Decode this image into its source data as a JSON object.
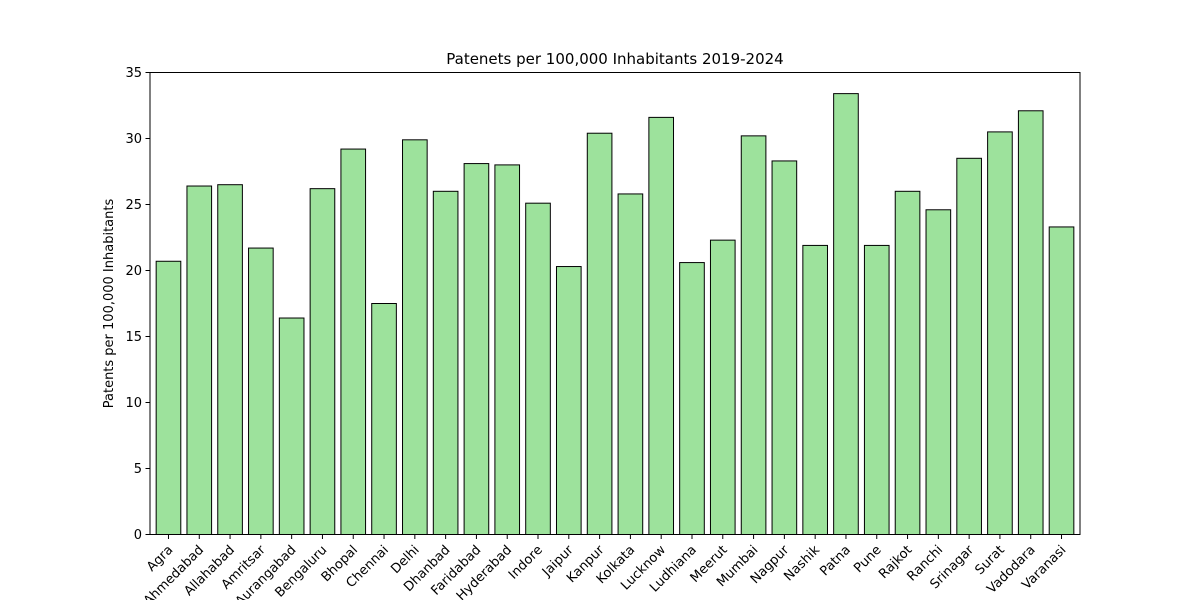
{
  "chart_data": {
    "type": "bar",
    "title": "Patenets per 100,000 Inhabitants 2019-2024",
    "xlabel": "",
    "ylabel": "Patents per 100,000 Inhabitants",
    "ylim": [
      0,
      35
    ],
    "yticks": [
      0,
      5,
      10,
      15,
      20,
      25,
      30,
      35
    ],
    "grid": false,
    "categories": [
      "Agra",
      "Ahmedabad",
      "Allahabad",
      "Amritsar",
      "Aurangabad",
      "Bengaluru",
      "Bhopal",
      "Chennai",
      "Delhi",
      "Dhanbad",
      "Faridabad",
      "Hyderabad",
      "Indore",
      "Jaipur",
      "Kanpur",
      "Kolkata",
      "Lucknow",
      "Ludhiana",
      "Meerut",
      "Mumbai",
      "Nagpur",
      "Nashik",
      "Patna",
      "Pune",
      "Rajkot",
      "Ranchi",
      "Srinagar",
      "Surat",
      "Vadodara",
      "Varanasi"
    ],
    "values": [
      20.7,
      26.4,
      26.5,
      21.7,
      16.4,
      26.2,
      29.2,
      17.5,
      29.9,
      26.0,
      28.1,
      28.0,
      25.1,
      20.3,
      30.4,
      25.8,
      31.6,
      20.6,
      22.3,
      30.2,
      28.3,
      21.9,
      33.4,
      21.9,
      26.0,
      24.6,
      28.5,
      30.5,
      32.1,
      23.3
    ],
    "colors": {
      "bar_fill": "#9de29c",
      "bar_edge": "#000000"
    }
  }
}
